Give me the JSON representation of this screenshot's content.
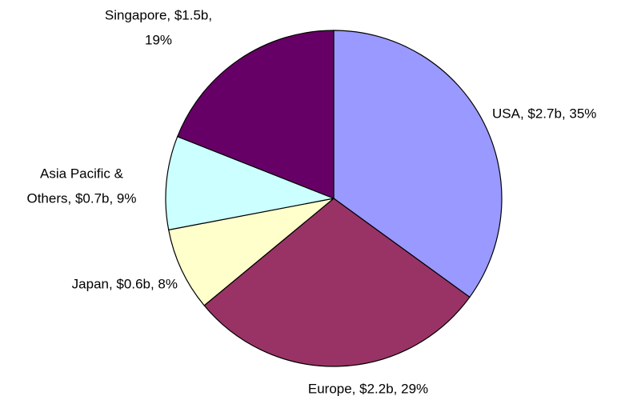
{
  "chart_data": {
    "type": "pie",
    "values": [
      35,
      29,
      8,
      9,
      19
    ],
    "value_labels": [
      [
        "USA, $2.7b, 35%"
      ],
      [
        "Europe, $2.2b, 29%"
      ],
      [
        "Japan, $0.6b, 8%"
      ],
      [
        "Asia Pacific &",
        "Others, $0.7b, 9%"
      ],
      [
        "Singapore, $1.5b,",
        "19%"
      ]
    ],
    "colors": [
      "#9999ff",
      "#993366",
      "#ffffcc",
      "#ccffff",
      "#660066"
    ]
  }
}
